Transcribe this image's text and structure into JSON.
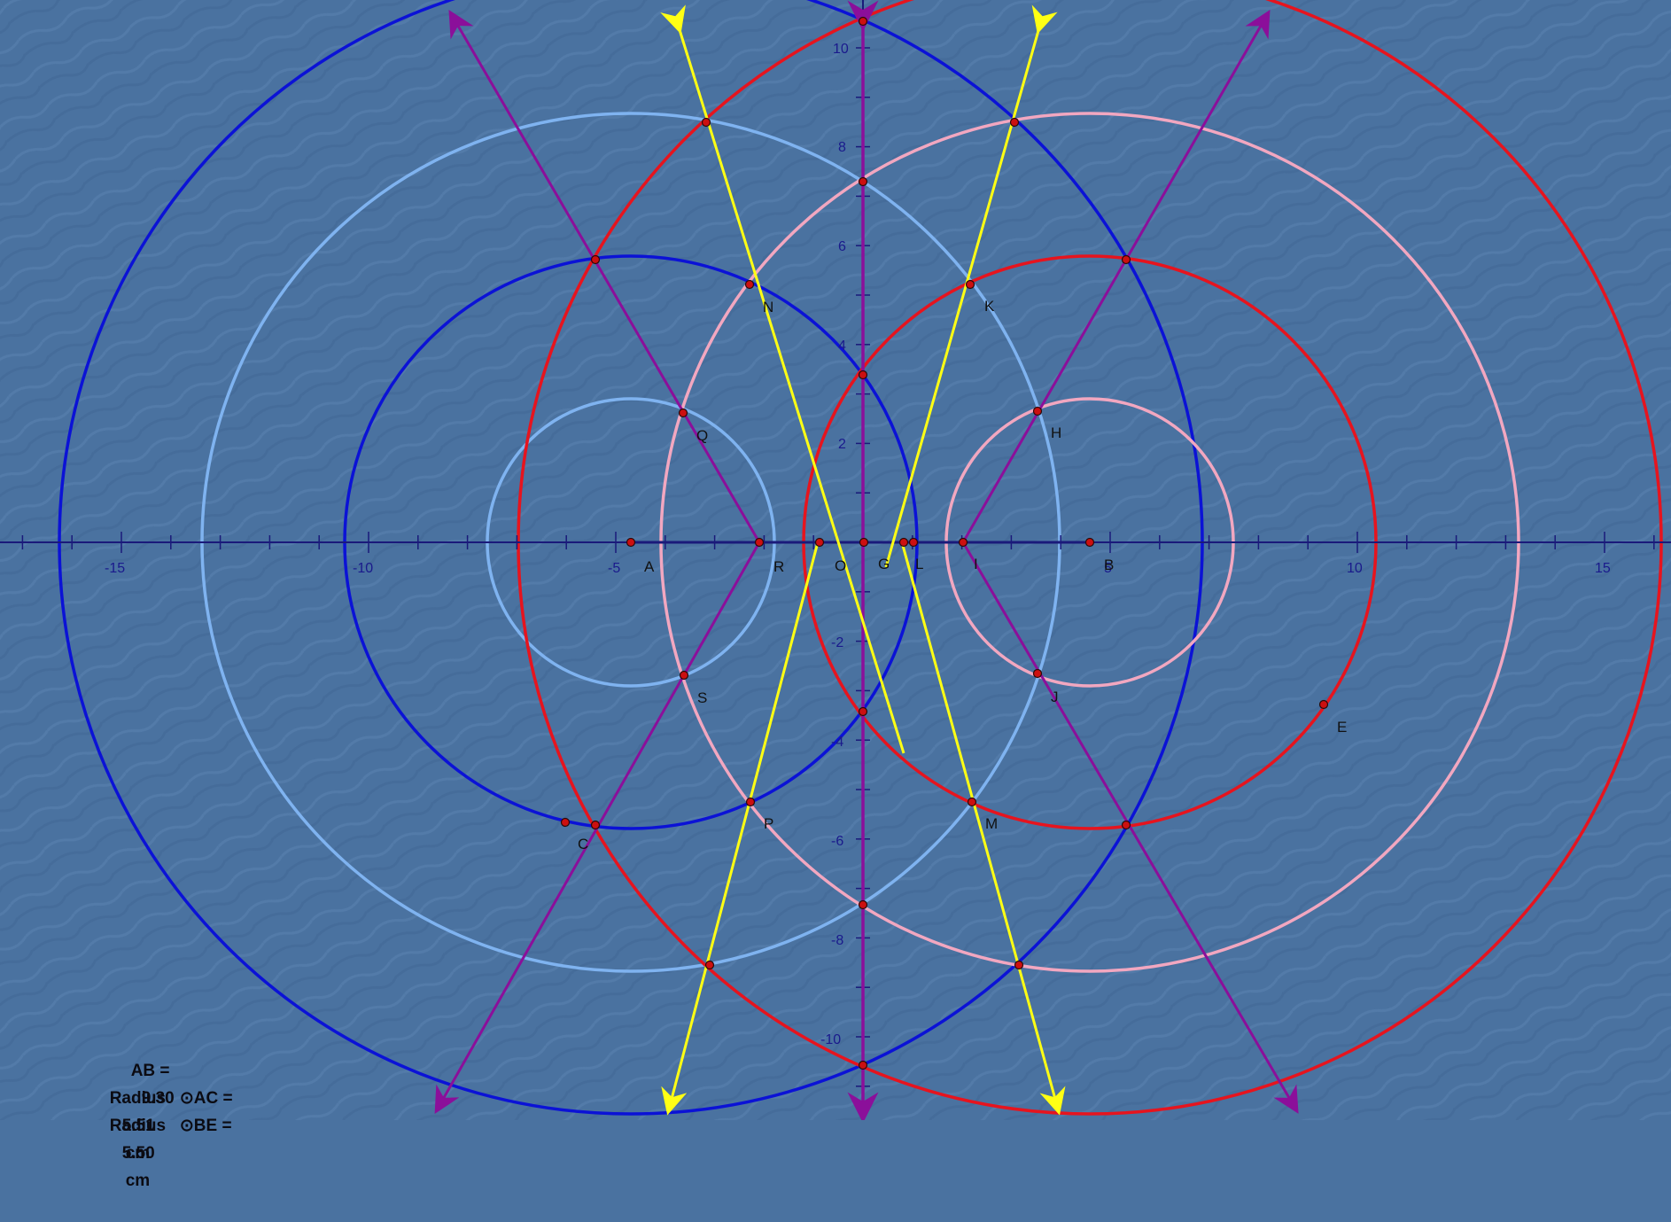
{
  "colors": {
    "background": "#4a72a0",
    "axis": "#1a1a7a",
    "blue_circle": "#0b12d6",
    "light_blue_circle": "#7fb3f0",
    "red_circle": "#e6141e",
    "pink_circle": "#f2a7c0",
    "yellow_line": "#ffff14",
    "purple_line": "#8b0f9a",
    "point_fill": "#cc1010"
  },
  "axes": {
    "x_tick_labels": [
      "-15",
      "-10",
      "-5",
      "5",
      "10",
      "15"
    ],
    "y_tick_labels": [
      "10",
      "8",
      "6",
      "4",
      "2",
      "-2",
      "-4",
      "-6",
      "-8",
      "-10"
    ]
  },
  "points": {
    "labels": [
      "A",
      "B",
      "C",
      "E",
      "G",
      "H",
      "I",
      "J",
      "K",
      "L",
      "M",
      "N",
      "O",
      "P",
      "Q",
      "R",
      "S"
    ]
  },
  "measurements": [
    {
      "label": "AB =",
      "value": "9.30",
      "unit": ""
    },
    {
      "label": "Radius   ⊙AC =",
      "value": "5.51",
      "unit": "cm"
    },
    {
      "label": "Radius   ⊙BE =",
      "value": "5.50",
      "unit": "cm"
    }
  ]
}
